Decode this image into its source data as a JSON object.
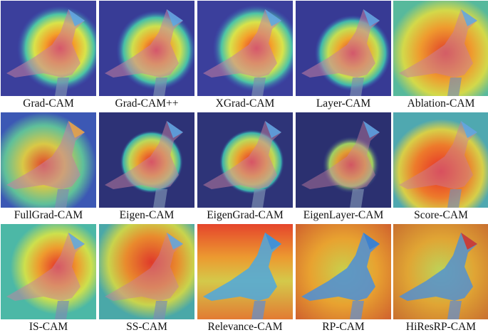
{
  "figure": {
    "panels": [
      {
        "label": "Grad-CAM"
      },
      {
        "label": "Grad-CAM++"
      },
      {
        "label": "XGrad-CAM"
      },
      {
        "label": "Layer-CAM"
      },
      {
        "label": "Ablation-CAM"
      },
      {
        "label": "FullGrad-CAM"
      },
      {
        "label": "Eigen-CAM"
      },
      {
        "label": "EigenGrad-CAM"
      },
      {
        "label": "EigenLayer-CAM"
      },
      {
        "label": "Score-CAM"
      },
      {
        "label": "IS-CAM"
      },
      {
        "label": "SS-CAM"
      },
      {
        "label": "Relevance-CAM"
      },
      {
        "label": "RP-CAM"
      },
      {
        "label": "HiResRP-CAM"
      }
    ]
  }
}
